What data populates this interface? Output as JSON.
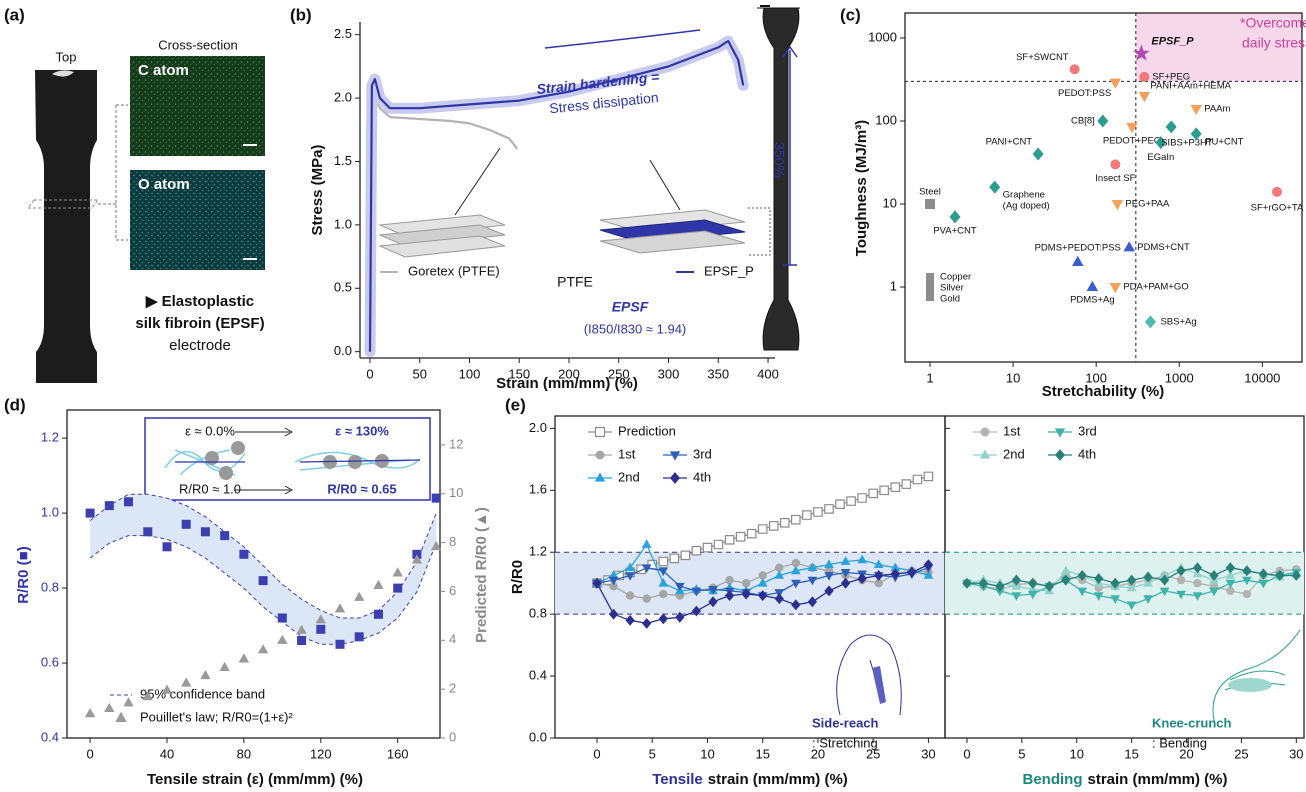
{
  "figure_a": {
    "panel_label": "(a)",
    "top": "Top",
    "cross_section": "Cross-section",
    "c_atom": "C atom",
    "o_atom": "O atom",
    "caption": [
      "▶ Elastoplastic",
      "silk fibroin (EPSF)",
      "electrode"
    ]
  },
  "chart_data": [
    {
      "type": "line",
      "panel_label": "(b)",
      "xlabel": "Strain (mm/mm) (%)",
      "ylabel": "Stress (MPa)",
      "xlim": [
        -10,
        407
      ],
      "ylim": [
        -0.05,
        2.6
      ],
      "xticks": [
        0,
        50,
        100,
        150,
        200,
        250,
        300,
        350,
        400
      ],
      "yticks": [
        {
          "value": 0,
          "label": "0.0"
        },
        0.5,
        {
          "value": 1,
          "label": "1.0"
        },
        1.5,
        {
          "value": 2,
          "label": "2.0"
        },
        2.5
      ],
      "series": [
        {
          "name": "Goretex (PTFE)",
          "color": "#b3b3b3",
          "x": [
            0,
            2,
            5,
            10,
            20,
            40,
            60,
            80,
            100,
            120,
            140,
            148
          ],
          "values": [
            0,
            1.9,
            2.0,
            1.92,
            1.85,
            1.84,
            1.83,
            1.82,
            1.8,
            1.75,
            1.68,
            1.6
          ]
        },
        {
          "name": "EPSF_P",
          "color": "#3035a8",
          "halo_color": "#c9cbee",
          "x": [
            0,
            2,
            5,
            10,
            20,
            50,
            100,
            150,
            200,
            250,
            300,
            350,
            360,
            370,
            375
          ],
          "values": [
            0,
            2.1,
            2.15,
            2.0,
            1.92,
            1.92,
            1.95,
            1.98,
            2.05,
            2.15,
            2.25,
            2.4,
            2.45,
            2.3,
            2.1
          ]
        }
      ],
      "annotations": [
        "Strain hardening =",
        "Stress dissipation",
        "PTFE",
        "EPSF",
        "(I850/I830 ≈ 1.94)",
        "350%"
      ]
    },
    {
      "type": "scatter",
      "panel_label": "(c)",
      "xlabel": "Stretchability (%)",
      "ylabel": "Toughness (MJ/m³)",
      "log_x": true,
      "log_y": true,
      "frame": true,
      "xlim": [
        0.5,
        30000
      ],
      "ylim": [
        0.125,
        2000
      ],
      "xticks": [
        1,
        10,
        100,
        1000,
        10000
      ],
      "yticks": [
        1,
        10,
        100,
        1000
      ],
      "threshold": {
        "x": 300,
        "y": 300
      },
      "region_color": "#f6d8ea",
      "points": [
        {
          "label": "SF+SWCNT",
          "x": 55,
          "y": 420,
          "marker": "circle",
          "color": "#f07a7a"
        },
        {
          "label": "SF+PEG",
          "x": 380,
          "y": 340,
          "marker": "circle",
          "color": "#f07a7a"
        },
        {
          "label": "PEDOT:PSS",
          "x": 170,
          "y": 290,
          "marker": "triangle-down",
          "color": "#f5a05a"
        },
        {
          "label": "PANI+AAm+HEMA",
          "x": 380,
          "y": 200,
          "marker": "triangle-down",
          "color": "#f5a05a"
        },
        {
          "label": "PAAm",
          "x": 1600,
          "y": 140,
          "marker": "triangle-down",
          "color": "#f5a05a"
        },
        {
          "label": "CB[8]",
          "x": 120,
          "y": 100,
          "marker": "diamond",
          "color": "#2a9d8f"
        },
        {
          "label": "PEDOT+PEG",
          "x": 270,
          "y": 85,
          "marker": "triangle-down",
          "color": "#f5a05a"
        },
        {
          "label": "PANI+CNT",
          "x": 20,
          "y": 40,
          "marker": "diamond",
          "color": "#2a9d8f"
        },
        {
          "label": "Insect SF",
          "x": 170,
          "y": 30,
          "marker": "circle",
          "color": "#f07a7a"
        },
        {
          "label": "EGaIn",
          "x": 600,
          "y": 55,
          "marker": "diamond",
          "color": "#2a9d8f"
        },
        {
          "label": "SIBS+P3HT",
          "x": 800,
          "y": 85,
          "marker": "diamond",
          "color": "#2a9d8f"
        },
        {
          "label": "PU+CNT",
          "x": 1600,
          "y": 70,
          "marker": "diamond",
          "color": "#2a9d8f"
        },
        {
          "label": [
            "Graphene",
            "(Ag doped)"
          ],
          "x": 6,
          "y": 16,
          "marker": "diamond",
          "color": "#2a9d8f"
        },
        {
          "label": "Steel",
          "x": 1,
          "y": 10,
          "marker": "square",
          "color": "#8c8c8c"
        },
        {
          "label": "PVA+CNT",
          "x": 2,
          "y": 7,
          "marker": "diamond",
          "color": "#2a9d8f"
        },
        {
          "label": "PEG+PAA",
          "x": 180,
          "y": 10,
          "marker": "triangle-down",
          "color": "#f5a05a"
        },
        {
          "label": "SF+rGO+TA",
          "x": 15000,
          "y": 14,
          "marker": "circle",
          "color": "#f07a7a"
        },
        {
          "label": "PDMS+PEDOT:PSS",
          "x": 60,
          "y": 2,
          "marker": "triangle-up",
          "color": "#3a5fcd"
        },
        {
          "label": "PDMS+CNT",
          "x": 250,
          "y": 3,
          "marker": "triangle-up",
          "color": "#3a5fcd"
        },
        {
          "label": [
            "Copper",
            "Silver",
            "Gold"
          ],
          "x": 1,
          "y": 1,
          "marker": "rect",
          "color": "#8c8c8c"
        },
        {
          "label": "PDA+PAM+GO",
          "x": 170,
          "y": 1,
          "marker": "triangle-down",
          "color": "#f5a05a"
        },
        {
          "label": "PDMS+Ag",
          "x": 90,
          "y": 1,
          "marker": "triangle-up",
          "color": "#3a5fcd"
        },
        {
          "label": "SBS+Ag",
          "x": 450,
          "y": 0.38,
          "marker": "diamond",
          "color": "#4fb8b0"
        },
        {
          "label": "EPSF_P",
          "x": 350,
          "y": 650,
          "marker": "star",
          "color": "#b04ab0"
        }
      ],
      "annotations": [
        "*Overcome",
        "daily stress"
      ]
    },
    {
      "type": "scatter",
      "panel_label": "(d)",
      "xlabel": "Tensile strain (ε) (mm/mm) (%)",
      "ylabel": "R/R0 (■)",
      "y2label": "Predicted R/R0 (▲)",
      "frame": true,
      "xlim": [
        -12,
        182
      ],
      "ylim": [
        0.4,
        1.275
      ],
      "y2lim": [
        0,
        13.43
      ],
      "xticks": [
        0,
        40,
        80,
        120,
        160
      ],
      "yticks": [
        0.4,
        0.6,
        0.8,
        {
          "value": 1,
          "label": "1.0"
        },
        1.2
      ],
      "y2ticks": [
        0,
        2,
        4,
        6,
        8,
        10,
        12
      ],
      "x": [
        0,
        10,
        20,
        30,
        40,
        50,
        60,
        70,
        80,
        90,
        100,
        110,
        120,
        130,
        140,
        150,
        160,
        170,
        180
      ],
      "series": [
        {
          "marker": "square",
          "color": "#3b3fb0",
          "values": [
            1.0,
            1.02,
            1.03,
            0.95,
            0.91,
            0.97,
            0.95,
            0.94,
            0.89,
            0.82,
            0.72,
            0.66,
            0.69,
            0.65,
            0.67,
            0.73,
            0.8,
            0.89,
            1.04
          ]
        },
        {
          "name": "Pouillet's law; R/R0=(1+ε)²",
          "axis": "y2",
          "marker": "triangle-up",
          "color": "#9a9a9a",
          "values": [
            1,
            1.21,
            1.44,
            1.69,
            1.96,
            2.25,
            2.56,
            2.89,
            3.24,
            3.61,
            4,
            4.41,
            4.84,
            5.29,
            5.76,
            6.25,
            6.76,
            7.29,
            7.84
          ]
        }
      ],
      "band": {
        "name": "95% confidence band",
        "color": "#dbe6f6",
        "line_color": "#3b3fb0",
        "upper": [
          0.98,
          1.02,
          1.05,
          1.05,
          1.04,
          1.02,
          0.99,
          0.95,
          0.91,
          0.86,
          0.81,
          0.77,
          0.74,
          0.72,
          0.72,
          0.74,
          0.79,
          0.87,
          1.0
        ],
        "lower": [
          0.88,
          0.92,
          0.94,
          0.94,
          0.93,
          0.91,
          0.88,
          0.84,
          0.8,
          0.75,
          0.71,
          0.67,
          0.65,
          0.65,
          0.66,
          0.68,
          0.72,
          0.79,
          0.92
        ]
      },
      "annotations": [
        "ε ≈ 0.0%",
        "ε ≈ 130%",
        "R/R0 ≈ 1.0",
        "R/R0 ≈ 0.65"
      ]
    },
    {
      "type": "line",
      "panel_label": "(e)",
      "xlabel_prefix": "Tensile",
      "xlabel_prefix_color": "#2e3192",
      "xlabel": "strain (mm/mm) (%)",
      "ylabel": "R/R0",
      "frame": true,
      "xlim": [
        -3.8,
        31.5
      ],
      "ylim": [
        0,
        2.08
      ],
      "xticks": [
        0,
        5,
        10,
        15,
        20,
        25,
        30
      ],
      "yticks": [
        {
          "value": 0,
          "label": "0.0"
        },
        0.4,
        0.8,
        1.2,
        1.6,
        {
          "value": 2,
          "label": "2.0"
        }
      ],
      "band": [
        0.8,
        1.2
      ],
      "band_color": "#dde6f5",
      "band_line_color": "#2e3192",
      "x": [
        0,
        1.5,
        3,
        4.5,
        6,
        7.5,
        9,
        10.5,
        12,
        13.5,
        15,
        16.5,
        18,
        19.5,
        21,
        22.5,
        24,
        25.5,
        27,
        28.5,
        30
      ],
      "series": [
        {
          "name": "Prediction",
          "marker": "open-square",
          "color": "#8c8c8c",
          "x": [
            0,
            1,
            2,
            3,
            4,
            5,
            6,
            7,
            8,
            9,
            10,
            11,
            12,
            13,
            14,
            15,
            16,
            17,
            18,
            19,
            20,
            21,
            22,
            23,
            24,
            25,
            26,
            27,
            28,
            29,
            30
          ],
          "values": [
            1.0,
            1.02,
            1.05,
            1.07,
            1.09,
            1.12,
            1.14,
            1.16,
            1.18,
            1.21,
            1.23,
            1.25,
            1.28,
            1.3,
            1.32,
            1.35,
            1.37,
            1.39,
            1.41,
            1.44,
            1.46,
            1.48,
            1.51,
            1.53,
            1.55,
            1.58,
            1.6,
            1.62,
            1.64,
            1.67,
            1.69
          ]
        },
        {
          "name": "1st",
          "marker": "circle",
          "color": "#a6a6a6",
          "values": [
            1.0,
            0.98,
            0.92,
            0.9,
            0.93,
            0.92,
            0.95,
            0.97,
            1.02,
            1.0,
            1.05,
            1.1,
            1.13,
            1.1,
            1.08,
            1.05,
            1.02,
            1.0,
            1.06,
            1.08,
            1.07
          ]
        },
        {
          "name": "2nd",
          "marker": "triangle-up",
          "color": "#29a3dc",
          "values": [
            1.0,
            1.05,
            1.1,
            1.25,
            1.0,
            0.95,
            0.96,
            0.95,
            0.97,
            0.95,
            1.0,
            1.05,
            1.08,
            1.1,
            1.12,
            1.14,
            1.15,
            1.12,
            1.1,
            1.08,
            1.05
          ]
        },
        {
          "name": "3rd",
          "marker": "triangle-down",
          "color": "#2e5fb8",
          "values": [
            1.0,
            1.02,
            1.05,
            1.1,
            1.08,
            0.98,
            0.95,
            0.96,
            0.95,
            0.94,
            0.92,
            0.94,
            1.0,
            1.02,
            1.05,
            1.07,
            1.06,
            1.05,
            1.04,
            1.06,
            1.1
          ]
        },
        {
          "name": "4th",
          "marker": "diamond",
          "color": "#2b2f8f",
          "values": [
            1.0,
            0.8,
            0.76,
            0.74,
            0.77,
            0.78,
            0.82,
            0.88,
            0.92,
            0.93,
            0.92,
            0.9,
            0.86,
            0.88,
            0.95,
            1.0,
            1.03,
            1.05,
            1.06,
            1.07,
            1.12
          ]
        }
      ],
      "annotations": [
        "Side-reach",
        ": Stretching"
      ]
    },
    {
      "type": "line",
      "xlabel_prefix": "Bending",
      "xlabel_prefix_color": "#1a8a80",
      "xlabel": "strain (mm/mm) (%)",
      "frame": true,
      "xlim": [
        -2,
        30.7
      ],
      "ylim": [
        0,
        2.08
      ],
      "xticks": [
        0,
        5,
        10,
        15,
        20,
        25,
        30
      ],
      "band": [
        0.8,
        1.2
      ],
      "band_color": "#ddf2ef",
      "band_line_color": "#1a8a80",
      "x": [
        0,
        1.5,
        3,
        4.5,
        6,
        7.5,
        9,
        10.5,
        12,
        13.5,
        15,
        16.5,
        18,
        19.5,
        21,
        22.5,
        24,
        25.5,
        27,
        28.5,
        30
      ],
      "series": [
        {
          "name": "1st",
          "marker": "circle",
          "color": "#b3b3b3",
          "values": [
            1.0,
            0.98,
            0.96,
            0.99,
            1.0,
            0.98,
            1.05,
            1.02,
            0.97,
            0.98,
            1.0,
            1.02,
            1.05,
            1.02,
            1.0,
            0.98,
            0.95,
            0.93,
            1.05,
            1.08,
            1.09
          ]
        },
        {
          "name": "2nd",
          "marker": "triangle-up",
          "color": "#8fd3c8",
          "values": [
            1.0,
            1.02,
            1.0,
            0.98,
            0.96,
            0.95,
            1.08,
            1.05,
            1.0,
            0.98,
            0.97,
            1.0,
            1.05,
            1.1,
            1.06,
            1.02,
            1.05,
            1.08,
            1.06,
            1.04,
            1.06
          ]
        },
        {
          "name": "3rd",
          "marker": "triangle-down",
          "color": "#3fb3ac",
          "values": [
            1.0,
            0.98,
            0.95,
            0.92,
            0.93,
            0.98,
            1.02,
            0.95,
            0.92,
            0.9,
            0.86,
            0.9,
            0.95,
            0.93,
            0.92,
            0.95,
            1.0,
            1.02,
            1.0,
            1.05,
            1.07
          ]
        },
        {
          "name": "4th",
          "marker": "diamond",
          "color": "#2a7f77",
          "values": [
            1.0,
            1.0,
            0.98,
            1.02,
            1.0,
            0.98,
            1.02,
            1.05,
            1.03,
            1.0,
            1.02,
            1.04,
            1.02,
            1.08,
            1.1,
            1.05,
            1.1,
            1.08,
            1.06,
            1.05,
            1.05
          ]
        }
      ],
      "annotations": [
        "Knee-crunch",
        ": Bending"
      ]
    }
  ]
}
